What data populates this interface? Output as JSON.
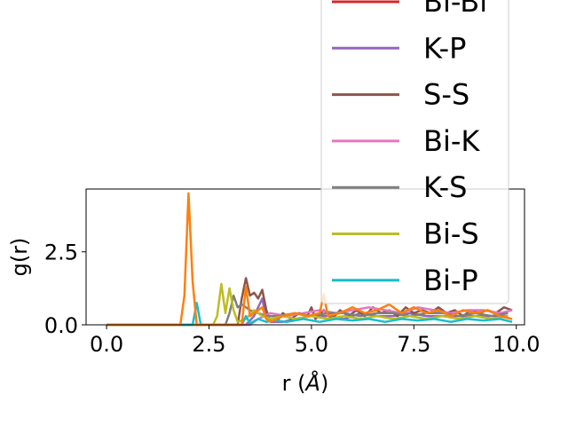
{
  "chart_data": {
    "type": "line",
    "xlabel": "r (",
    "xlabel_unit": "Å",
    "xlabel_close": ")",
    "ylabel": "g(r)",
    "xlim": [
      -0.5,
      10.2
    ],
    "ylim": [
      0,
      4.65
    ],
    "xticks": [
      0.0,
      2.5,
      5.0,
      7.5,
      10.0
    ],
    "xtick_labels": [
      "0.0",
      "2.5",
      "5.0",
      "7.5",
      "10.0"
    ],
    "yticks": [
      0.0,
      2.5
    ],
    "ytick_labels": [
      "0.0",
      "2.5"
    ],
    "legend_placement": "upper-right",
    "series": [
      {
        "name": "Bi-Bi",
        "color": "#d62728",
        "points": []
      },
      {
        "name": "K-P",
        "color": "#9467bd",
        "points": [
          [
            0,
            0
          ],
          [
            1.8,
            0
          ],
          [
            2.0,
            0
          ],
          [
            3.4,
            0
          ],
          [
            3.6,
            0.3
          ],
          [
            3.8,
            0.9
          ],
          [
            3.9,
            0.2
          ],
          [
            4.0,
            0.1
          ],
          [
            4.3,
            0.1
          ],
          [
            4.6,
            0.2
          ],
          [
            5.0,
            0.3
          ],
          [
            5.4,
            0.3
          ],
          [
            5.8,
            0.2
          ],
          [
            6.2,
            0.4
          ],
          [
            6.6,
            0.3
          ],
          [
            7.0,
            0.3
          ],
          [
            7.4,
            0.4
          ],
          [
            7.8,
            0.3
          ],
          [
            8.2,
            0.3
          ],
          [
            8.6,
            0.3
          ],
          [
            9.0,
            0.3
          ],
          [
            9.4,
            0.3
          ],
          [
            9.8,
            0.3
          ]
        ]
      },
      {
        "name": "S-S",
        "color": "#8c564b",
        "points": [
          [
            0,
            0
          ],
          [
            3.2,
            0
          ],
          [
            3.3,
            0.9
          ],
          [
            3.4,
            1.6
          ],
          [
            3.5,
            1.0
          ],
          [
            3.6,
            1.1
          ],
          [
            3.7,
            0.9
          ],
          [
            3.8,
            1.2
          ],
          [
            3.9,
            0.5
          ],
          [
            4.0,
            0.1
          ],
          [
            4.2,
            0.2
          ],
          [
            4.3,
            0.4
          ],
          [
            4.5,
            0.2
          ],
          [
            4.7,
            0.4
          ],
          [
            4.9,
            0.3
          ],
          [
            5.0,
            0.6
          ],
          [
            5.1,
            0.2
          ],
          [
            5.3,
            0.5
          ],
          [
            5.5,
            0.2
          ],
          [
            5.7,
            0.5
          ],
          [
            5.9,
            0.3
          ],
          [
            6.1,
            0.5
          ],
          [
            6.3,
            0.3
          ],
          [
            6.5,
            0.6
          ],
          [
            6.7,
            0.4
          ],
          [
            6.9,
            0.5
          ],
          [
            7.1,
            0.3
          ],
          [
            7.3,
            0.6
          ],
          [
            7.5,
            0.4
          ],
          [
            7.7,
            0.5
          ],
          [
            7.9,
            0.4
          ],
          [
            8.1,
            0.6
          ],
          [
            8.3,
            0.4
          ],
          [
            8.5,
            0.5
          ],
          [
            8.7,
            0.3
          ],
          [
            8.9,
            0.5
          ],
          [
            9.1,
            0.4
          ],
          [
            9.3,
            0.5
          ],
          [
            9.5,
            0.4
          ],
          [
            9.7,
            0.6
          ],
          [
            9.9,
            0.5
          ]
        ]
      },
      {
        "name": "Bi-K",
        "color": "#e377c2",
        "points": [
          [
            0,
            0
          ],
          [
            3.5,
            0
          ],
          [
            3.7,
            0.2
          ],
          [
            4.0,
            0.4
          ],
          [
            4.4,
            0.3
          ],
          [
            4.8,
            0.4
          ],
          [
            5.2,
            0.5
          ],
          [
            5.6,
            0.4
          ],
          [
            6.0,
            0.5
          ],
          [
            6.4,
            0.6
          ],
          [
            6.8,
            0.5
          ],
          [
            7.2,
            0.4
          ],
          [
            7.6,
            0.6
          ],
          [
            8.0,
            0.5
          ],
          [
            8.4,
            0.4
          ],
          [
            8.8,
            0.5
          ],
          [
            9.2,
            0.5
          ],
          [
            9.6,
            0.4
          ],
          [
            9.9,
            0.5
          ]
        ]
      },
      {
        "name": "K-S",
        "color": "#7f7f7f",
        "points": [
          [
            0,
            0
          ],
          [
            2.9,
            0
          ],
          [
            3.0,
            0.4
          ],
          [
            3.1,
            1.0
          ],
          [
            3.2,
            0.6
          ],
          [
            3.3,
            0.7
          ],
          [
            3.5,
            0.5
          ],
          [
            3.7,
            0.4
          ],
          [
            3.9,
            0.3
          ],
          [
            4.2,
            0.3
          ],
          [
            4.6,
            0.4
          ],
          [
            5.0,
            0.3
          ],
          [
            5.4,
            0.4
          ],
          [
            5.8,
            0.4
          ],
          [
            6.2,
            0.3
          ],
          [
            6.6,
            0.4
          ],
          [
            7.0,
            0.4
          ],
          [
            7.4,
            0.3
          ],
          [
            7.8,
            0.4
          ],
          [
            8.2,
            0.4
          ],
          [
            8.6,
            0.3
          ],
          [
            9.0,
            0.4
          ],
          [
            9.4,
            0.3
          ],
          [
            9.8,
            0.4
          ]
        ]
      },
      {
        "name": "Bi-S",
        "color": "#bcbd22",
        "points": [
          [
            0,
            0
          ],
          [
            2.6,
            0
          ],
          [
            2.7,
            0.3
          ],
          [
            2.8,
            1.4
          ],
          [
            2.9,
            0.4
          ],
          [
            3.0,
            1.25
          ],
          [
            3.1,
            0.5
          ],
          [
            3.2,
            0.1
          ],
          [
            3.4,
            0.2
          ],
          [
            3.6,
            0.5
          ],
          [
            3.8,
            0.3
          ],
          [
            4.0,
            0.2
          ],
          [
            4.3,
            0.3
          ],
          [
            4.6,
            0.2
          ],
          [
            5.0,
            0.3
          ],
          [
            5.4,
            0.2
          ],
          [
            5.8,
            0.3
          ],
          [
            6.2,
            0.2
          ],
          [
            6.6,
            0.3
          ],
          [
            7.0,
            0.2
          ],
          [
            7.4,
            0.3
          ],
          [
            7.8,
            0.2
          ],
          [
            8.2,
            0.3
          ],
          [
            8.6,
            0.2
          ],
          [
            9.0,
            0.3
          ],
          [
            9.4,
            0.2
          ],
          [
            9.8,
            0.3
          ]
        ]
      },
      {
        "name": "Bi-P",
        "color": "#17becf",
        "points": [
          [
            0,
            0
          ],
          [
            2.1,
            0
          ],
          [
            2.2,
            0.75
          ],
          [
            2.3,
            0
          ],
          [
            3.3,
            0
          ],
          [
            3.4,
            0.3
          ],
          [
            3.5,
            0.05
          ],
          [
            3.7,
            0.2
          ],
          [
            3.9,
            0.1
          ],
          [
            4.1,
            0.15
          ],
          [
            4.4,
            0.1
          ],
          [
            4.8,
            0.2
          ],
          [
            5.2,
            0.1
          ],
          [
            5.6,
            0.2
          ],
          [
            6.0,
            0.15
          ],
          [
            6.4,
            0.2
          ],
          [
            6.8,
            0.1
          ],
          [
            7.2,
            0.2
          ],
          [
            7.6,
            0.15
          ],
          [
            8.0,
            0.2
          ],
          [
            8.4,
            0.1
          ],
          [
            8.8,
            0.2
          ],
          [
            9.2,
            0.15
          ],
          [
            9.6,
            0.2
          ],
          [
            9.9,
            0.1
          ]
        ]
      },
      {
        "name": "",
        "color": "#ff7f0e",
        "points": [
          [
            0,
            0
          ],
          [
            1.8,
            0
          ],
          [
            1.9,
            1.0
          ],
          [
            2.0,
            4.5
          ],
          [
            2.1,
            1.5
          ],
          [
            2.2,
            0
          ],
          [
            3.3,
            0
          ],
          [
            3.4,
            1.3
          ],
          [
            3.5,
            0.3
          ],
          [
            3.6,
            0.4
          ],
          [
            3.8,
            0.6
          ],
          [
            3.9,
            0.2
          ],
          [
            4.0,
            0.1
          ],
          [
            4.3,
            0.3
          ],
          [
            4.6,
            0.4
          ],
          [
            4.9,
            0.3
          ],
          [
            5.2,
            0.4
          ],
          [
            5.3,
            1.05
          ],
          [
            5.4,
            0.3
          ],
          [
            5.7,
            0.4
          ],
          [
            6.0,
            0.6
          ],
          [
            6.3,
            0.4
          ],
          [
            6.6,
            0.5
          ],
          [
            6.9,
            0.7
          ],
          [
            7.2,
            0.4
          ],
          [
            7.5,
            0.6
          ],
          [
            7.8,
            0.4
          ],
          [
            8.1,
            0.5
          ],
          [
            8.4,
            0.3
          ],
          [
            8.7,
            0.5
          ],
          [
            9.0,
            0.4
          ],
          [
            9.3,
            0.5
          ],
          [
            9.6,
            0.3
          ],
          [
            9.9,
            0.2
          ]
        ]
      }
    ]
  }
}
